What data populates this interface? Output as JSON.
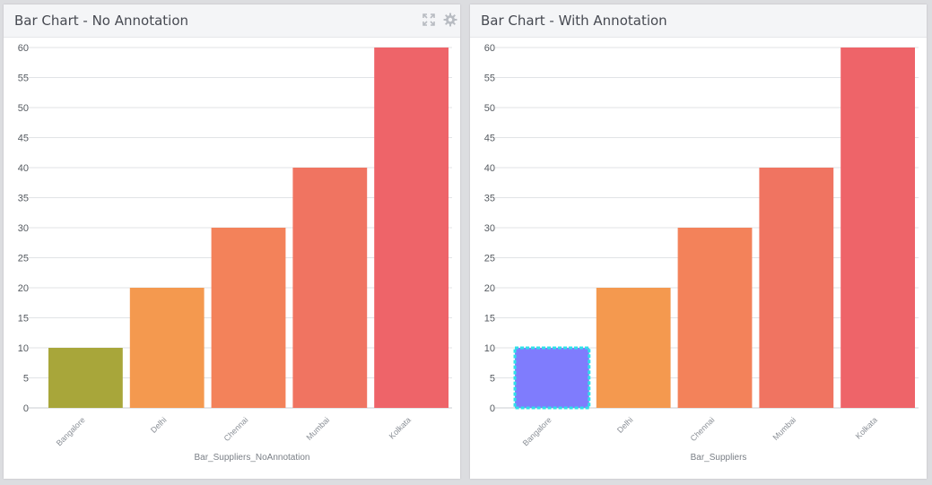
{
  "panels": [
    {
      "title": "Bar Chart - No Annotation",
      "icons": [
        "expand-icon",
        "gear-icon"
      ]
    },
    {
      "title": "Bar Chart - With Annotation",
      "icons": []
    }
  ],
  "chart_data": [
    {
      "type": "bar",
      "title": "Bar Chart - No Annotation",
      "categories": [
        "Bangalore",
        "Delhi",
        "Chennai",
        "Mumbai",
        "Kolkata"
      ],
      "values": [
        10,
        20,
        30,
        40,
        60
      ],
      "colors": [
        "#a8a63a",
        "#f4994f",
        "#f3825a",
        "#f07461",
        "#ee6469"
      ],
      "xlabel": "Bar_Suppliers_NoAnnotation",
      "ylabel": "",
      "ylim": [
        0,
        60
      ],
      "yticks": [
        0,
        5,
        10,
        15,
        20,
        25,
        30,
        35,
        40,
        45,
        50,
        55,
        60
      ],
      "grid": true,
      "annotated_index": null
    },
    {
      "type": "bar",
      "title": "Bar Chart - With Annotation",
      "categories": [
        "Bangalore",
        "Delhi",
        "Chennai",
        "Mumbai",
        "Kolkata"
      ],
      "values": [
        10,
        20,
        30,
        40,
        60
      ],
      "colors": [
        "#7f7cfd",
        "#f4994f",
        "#f3825a",
        "#f07461",
        "#ee6469"
      ],
      "xlabel": "Bar_Suppliers",
      "ylabel": "",
      "ylim": [
        0,
        60
      ],
      "yticks": [
        0,
        5,
        10,
        15,
        20,
        25,
        30,
        35,
        40,
        45,
        50,
        55,
        60
      ],
      "grid": true,
      "annotated_index": 0,
      "annotation_color": "#2fe0e8"
    }
  ]
}
